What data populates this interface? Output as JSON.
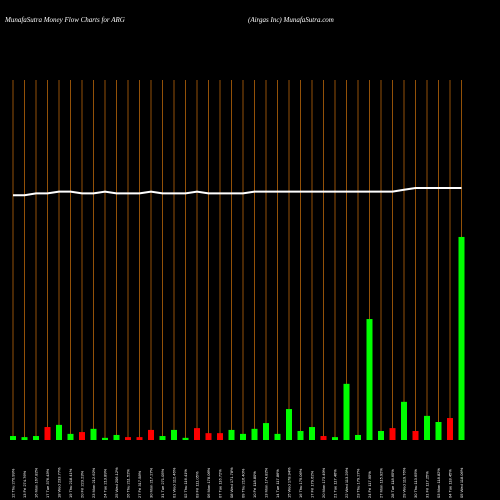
{
  "chart_data": {
    "type": "bar",
    "title": "MunafaSutra  Money Flow  Charts for ARG",
    "subtitle": "(Airgas Inc) MunafaSutra.com",
    "categories": [
      "12 Thu 270.99%",
      "13 Fri 274.76%",
      "16 Mon 167.82%",
      "17 Tue 376.43%",
      "18 Wed 233.77%",
      "19 Thu 218.41%",
      "20 Fri 223.23%",
      "23 Mon 212.62%",
      "24 Tue 213.89%",
      "25 Wed 206.12%",
      "26 Thu 211.52%",
      "27 Fri 317.58%",
      "30 Mon 217.27%",
      "31 Tue 271.05%",
      "01 Wed 112.46%",
      "02 Thu 116.41%",
      "03 Fri 111.05%",
      "06 Mon 178.06%",
      "07 Tue 116.72%",
      "08 Wed 171.78%",
      "09 Thu 216.40%",
      "10 Fri 118.80%",
      "13 Mon 174.82%",
      "14 Tue 117.86%",
      "15 Wed 178.94%",
      "16 Thu 179.06%",
      "17 Fri 179.62%",
      "20 Mon 173.49%",
      "21 Tue 117.46%",
      "22 Wed 113.29%",
      "23 Thu 179.27%",
      "24 Fri 117.95%",
      "27 Mon 115.92%",
      "28 Tue 118.65%",
      "29 Wed 119.76%",
      "30 Thu 113.65%",
      "31 Fri 117.25%",
      "03 Mon 118.82%",
      "04 Tue 118.45%",
      "05 Wed 118.06%"
    ],
    "values": [
      1.1,
      0.8,
      1.1,
      3.6,
      4.2,
      1.7,
      2.2,
      3.1,
      0.6,
      1.4,
      0.8,
      0.8,
      2.8,
      1.1,
      2.8,
      0.6,
      3.3,
      1.9,
      1.9,
      2.8,
      1.7,
      3.1,
      4.7,
      1.7,
      8.6,
      2.5,
      3.6,
      1.1,
      0.8,
      15.6,
      1.4,
      33.6,
      2.5,
      3.3,
      10.6,
      2.5,
      6.7,
      5.0,
      6.1,
      56.4
    ],
    "colors": [
      "#0f0",
      "#0f0",
      "#0f0",
      "#f00",
      "#0f0",
      "#0f0",
      "#f00",
      "#0f0",
      "#0f0",
      "#0f0",
      "#f00",
      "#f00",
      "#f00",
      "#0f0",
      "#0f0",
      "#0f0",
      "#f00",
      "#f00",
      "#f00",
      "#0f0",
      "#0f0",
      "#0f0",
      "#0f0",
      "#0f0",
      "#0f0",
      "#0f0",
      "#0f0",
      "#f00",
      "#0f0",
      "#0f0",
      "#0f0",
      "#0f0",
      "#0f0",
      "#f00",
      "#0f0",
      "#f00",
      "#0f0",
      "#0f0",
      "#f00",
      "#0f0"
    ],
    "line": {
      "color": "#fff",
      "values": [
        68,
        68,
        68.5,
        68.5,
        69,
        69,
        68.5,
        68.5,
        69,
        68.5,
        68.5,
        68.5,
        69,
        68.5,
        68.5,
        68.5,
        69,
        68.5,
        68.5,
        68.5,
        68.5,
        69,
        69,
        69,
        69,
        69,
        69,
        69,
        69,
        69,
        69,
        69,
        69,
        69,
        69.5,
        70,
        70,
        70,
        70,
        70
      ]
    },
    "ylim": [
      0,
      100
    ],
    "grid_color": "#b8660b"
  }
}
